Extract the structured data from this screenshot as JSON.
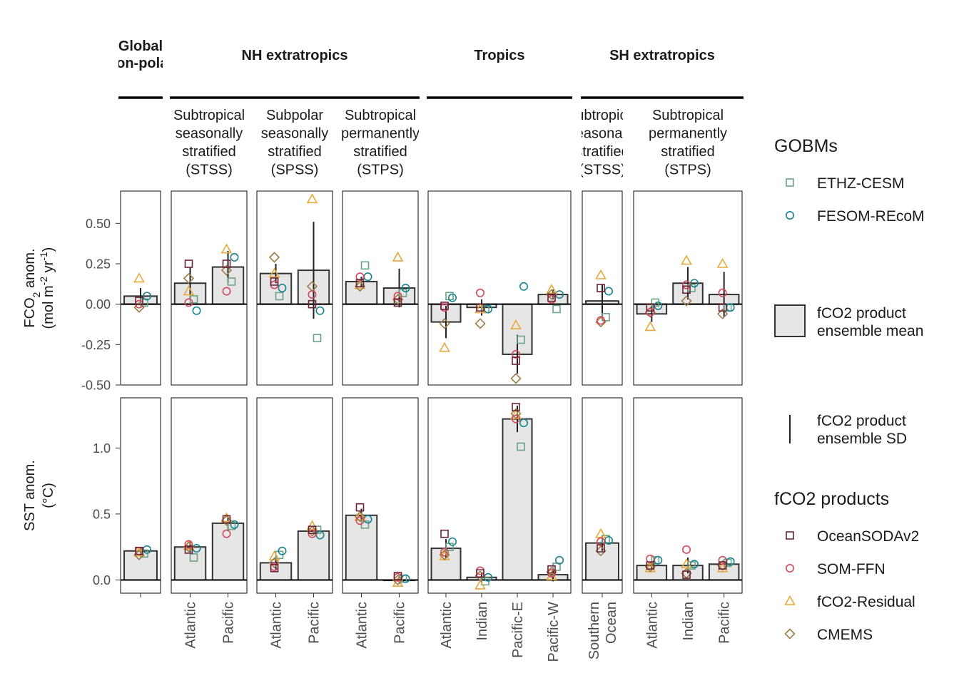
{
  "chart_data": {
    "type": "bar",
    "groups": [
      {
        "id": "global",
        "label": "Global non-polar",
        "facets": [
          {
            "id": "g",
            "title": [],
            "categories": [
              ""
            ]
          }
        ]
      },
      {
        "id": "nh",
        "label": "NH extratropics",
        "facets": [
          {
            "id": "nh_stss",
            "title": [
              "Subtropical",
              "seasonally",
              "stratified",
              "(STSS)"
            ],
            "categories": [
              "Atlantic",
              "Pacific"
            ]
          },
          {
            "id": "nh_spss",
            "title": [
              "Subpolar",
              "seasonally",
              "stratified",
              "(SPSS)"
            ],
            "categories": [
              "Atlantic",
              "Pacific"
            ]
          },
          {
            "id": "nh_stps",
            "title": [
              "Subtropical",
              "permanently",
              "stratified",
              "(STPS)"
            ],
            "categories": [
              "Atlantic",
              "Pacific"
            ]
          }
        ]
      },
      {
        "id": "tr",
        "label": "Tropics",
        "facets": [
          {
            "id": "tr",
            "title": [],
            "categories": [
              "Atlantic",
              "Indian",
              "Pacific-E",
              "Pacific-W"
            ]
          }
        ]
      },
      {
        "id": "sh",
        "label": "SH extratropics",
        "facets": [
          {
            "id": "sh_stss",
            "title": [
              "Subtropical",
              "seasonally",
              "stratified",
              "(STSS)"
            ],
            "categories": [
              "Southern Ocean"
            ]
          },
          {
            "id": "sh_stps",
            "title": [
              "Subtropical",
              "permanently",
              "stratified",
              "(STPS)"
            ],
            "categories": [
              "Atlantic",
              "Indian",
              "Pacific"
            ]
          }
        ]
      }
    ],
    "panels": [
      {
        "id": "fco2",
        "ylabel_main": "FCO",
        "ylabel_sub": "2",
        "ylabel_rest": " anom.",
        "ylabel2": "(mol m",
        "ylabel2_sup1": "-2",
        "ylabel2_mid": " yr",
        "ylabel2_sup2": "-1",
        "ylabel2_end": ")",
        "ylim": [
          -0.5,
          0.7
        ],
        "ticks": [
          -0.5,
          -0.25,
          0,
          0.25,
          0.5
        ],
        "tick_labels": [
          "-0.50",
          "-0.25",
          "0.00",
          "0.25",
          "0.50"
        ]
      },
      {
        "id": "sst",
        "ylabel_main": "SST anom.",
        "ylabel2": "(°C)",
        "ylim": [
          -0.1,
          1.38
        ],
        "ticks": [
          0,
          0.5,
          1.0
        ],
        "tick_labels": [
          "0.0",
          "0.5",
          "1.0"
        ]
      }
    ],
    "markers": [
      {
        "key": "ethz",
        "name": "ETHZ-CESM",
        "shape": "square",
        "color": "#6aa384"
      },
      {
        "key": "fesom",
        "name": "FESOM-REcoM",
        "shape": "circle",
        "color": "#17838f"
      },
      {
        "key": "ocean",
        "name": "OceanSODAv2",
        "shape": "square",
        "color": "#6b2335"
      },
      {
        "key": "som",
        "name": "SOM-FFN",
        "shape": "circle",
        "color": "#d4485a"
      },
      {
        "key": "resid",
        "name": "fCO2-Residual",
        "shape": "triangle",
        "color": "#e8a83a"
      },
      {
        "key": "cmems",
        "name": "CMEMS",
        "shape": "diamond",
        "color": "#9c7d4a"
      }
    ],
    "values": {
      "fco2": {
        "g": [
          {
            "mean": 0.05,
            "sd": 0.05,
            "ethz": 0.01,
            "fesom": 0.05,
            "ocean": 0.02,
            "som": 0.0,
            "resid": 0.16,
            "cmems": -0.02
          }
        ],
        "nh_stss": [
          {
            "mean": 0.13,
            "sd": 0.1,
            "ethz": 0.03,
            "fesom": -0.04,
            "ocean": 0.25,
            "som": 0.01,
            "resid": 0.08,
            "cmems": 0.16
          },
          {
            "mean": 0.23,
            "sd": 0.1,
            "ethz": 0.14,
            "fesom": 0.29,
            "ocean": 0.25,
            "som": 0.08,
            "resid": 0.34,
            "cmems": 0.21
          }
        ],
        "nh_spss": [
          {
            "mean": 0.19,
            "sd": 0.06,
            "ethz": 0.05,
            "fesom": 0.1,
            "ocean": 0.14,
            "som": 0.12,
            "resid": 0.19,
            "cmems": 0.29
          },
          {
            "mean": 0.21,
            "sd": 0.3,
            "ethz": -0.21,
            "fesom": -0.04,
            "ocean": 0.0,
            "som": 0.06,
            "resid": 0.65,
            "cmems": 0.11
          }
        ],
        "nh_stps": [
          {
            "mean": 0.14,
            "sd": 0.03,
            "ethz": 0.24,
            "fesom": 0.17,
            "ocean": 0.13,
            "som": 0.17,
            "resid": 0.12,
            "cmems": 0.11
          },
          {
            "mean": 0.1,
            "sd": 0.12,
            "ethz": 0.07,
            "fesom": 0.1,
            "ocean": 0.01,
            "som": 0.05,
            "resid": 0.29,
            "cmems": 0.03
          }
        ],
        "tr": [
          {
            "mean": -0.11,
            "sd": 0.1,
            "ethz": 0.05,
            "fesom": 0.04,
            "ocean": -0.01,
            "som": -0.02,
            "resid": -0.27,
            "cmems": -0.12
          },
          {
            "mean": -0.02,
            "sd": 0.05,
            "ethz": -0.03,
            "fesom": -0.03,
            "ocean": -0.02,
            "som": 0.07,
            "resid": -0.03,
            "cmems": -0.12
          },
          {
            "mean": -0.31,
            "sd": 0.12,
            "ethz": -0.22,
            "fesom": 0.11,
            "ocean": -0.35,
            "som": -0.31,
            "resid": -0.13,
            "cmems": -0.46
          },
          {
            "mean": 0.06,
            "sd": 0.03,
            "ethz": -0.03,
            "fesom": 0.06,
            "ocean": 0.04,
            "som": 0.03,
            "resid": 0.09,
            "cmems": 0.06
          }
        ],
        "sh_stss": [
          {
            "mean": 0.02,
            "sd": 0.1,
            "ethz": -0.08,
            "fesom": 0.08,
            "ocean": 0.1,
            "som": -0.1,
            "resid": 0.18,
            "cmems": -0.11
          }
        ],
        "sh_stps": [
          {
            "mean": -0.06,
            "sd": 0.05,
            "ethz": 0.01,
            "fesom": -0.01,
            "ocean": -0.02,
            "som": -0.05,
            "resid": -0.14,
            "cmems": -0.05
          },
          {
            "mean": 0.13,
            "sd": 0.1,
            "ethz": 0.1,
            "fesom": 0.13,
            "ocean": 0.09,
            "som": 0.12,
            "resid": 0.27,
            "cmems": 0.02
          },
          {
            "mean": 0.06,
            "sd": 0.14,
            "ethz": -0.02,
            "fesom": -0.02,
            "ocean": -0.02,
            "som": 0.07,
            "resid": 0.25,
            "cmems": -0.06
          }
        ]
      },
      "sst": {
        "g": [
          {
            "mean": 0.22,
            "sd": 0.02,
            "ethz": 0.2,
            "fesom": 0.23,
            "ocean": 0.22,
            "som": 0.22,
            "resid": 0.21,
            "cmems": 0.19
          }
        ],
        "nh_stss": [
          {
            "mean": 0.25,
            "sd": 0.04,
            "ethz": 0.17,
            "fesom": 0.24,
            "ocean": 0.23,
            "som": 0.27,
            "resid": 0.26,
            "cmems": 0.25
          },
          {
            "mean": 0.43,
            "sd": 0.06,
            "ethz": 0.41,
            "fesom": 0.42,
            "ocean": 0.46,
            "som": 0.35,
            "resid": 0.47,
            "cmems": 0.45
          }
        ],
        "nh_spss": [
          {
            "mean": 0.13,
            "sd": 0.05,
            "ethz": 0.19,
            "fesom": 0.22,
            "ocean": 0.09,
            "som": 0.1,
            "resid": 0.18,
            "cmems": 0.13
          },
          {
            "mean": 0.37,
            "sd": 0.03,
            "ethz": 0.38,
            "fesom": 0.34,
            "ocean": 0.38,
            "som": 0.35,
            "resid": 0.41,
            "cmems": 0.37
          }
        ],
        "nh_stps": [
          {
            "mean": 0.49,
            "sd": 0.05,
            "ethz": 0.42,
            "fesom": 0.46,
            "ocean": 0.55,
            "som": 0.45,
            "resid": 0.48,
            "cmems": 0.48
          },
          {
            "mean": 0.0,
            "sd": 0.03,
            "ethz": 0.01,
            "fesom": 0.01,
            "ocean": 0.03,
            "som": 0.02,
            "resid": -0.02,
            "cmems": 0.0
          }
        ],
        "tr": [
          {
            "mean": 0.24,
            "sd": 0.07,
            "ethz": 0.25,
            "fesom": 0.29,
            "ocean": 0.35,
            "som": 0.21,
            "resid": 0.18,
            "cmems": 0.19
          },
          {
            "mean": 0.02,
            "sd": 0.04,
            "ethz": -0.01,
            "fesom": 0.02,
            "ocean": 0.05,
            "som": 0.07,
            "resid": -0.04,
            "cmems": 0.03
          },
          {
            "mean": 1.22,
            "sd": 0.1,
            "ethz": 1.01,
            "fesom": 1.19,
            "ocean": 1.31,
            "som": 1.22,
            "resid": 1.25,
            "cmems": 1.26
          },
          {
            "mean": 0.04,
            "sd": 0.05,
            "ethz": 0.1,
            "fesom": 0.15,
            "ocean": 0.08,
            "som": 0.05,
            "resid": 0.03,
            "cmems": 0.06
          }
        ],
        "sh_stss": [
          {
            "mean": 0.28,
            "sd": 0.06,
            "ethz": 0.31,
            "fesom": 0.3,
            "ocean": 0.24,
            "som": 0.29,
            "resid": 0.35,
            "cmems": 0.22
          }
        ],
        "sh_stps": [
          {
            "mean": 0.11,
            "sd": 0.03,
            "ethz": 0.15,
            "fesom": 0.15,
            "ocean": 0.11,
            "som": 0.16,
            "resid": 0.09,
            "cmems": 0.1
          },
          {
            "mean": 0.11,
            "sd": 0.06,
            "ethz": 0.11,
            "fesom": 0.12,
            "ocean": 0.04,
            "som": 0.23,
            "resid": 0.12,
            "cmems": 0.05
          },
          {
            "mean": 0.12,
            "sd": 0.02,
            "ethz": 0.13,
            "fesom": 0.14,
            "ocean": 0.11,
            "som": 0.15,
            "resid": 0.09,
            "cmems": 0.11
          }
        ]
      }
    },
    "legend": {
      "placement": "right",
      "gobms_title": "GOBMs",
      "products_title": "fCO2 products",
      "bar_label": [
        "fCO2 product",
        "ensemble mean"
      ],
      "sd_label": [
        "fCO2 product",
        "ensemble SD"
      ]
    },
    "colors": {
      "bar_fill": "#e6e6e6",
      "bar_stroke": "#333333",
      "text": "#1a1a1a",
      "axis_text": "#4d4d4d"
    }
  }
}
